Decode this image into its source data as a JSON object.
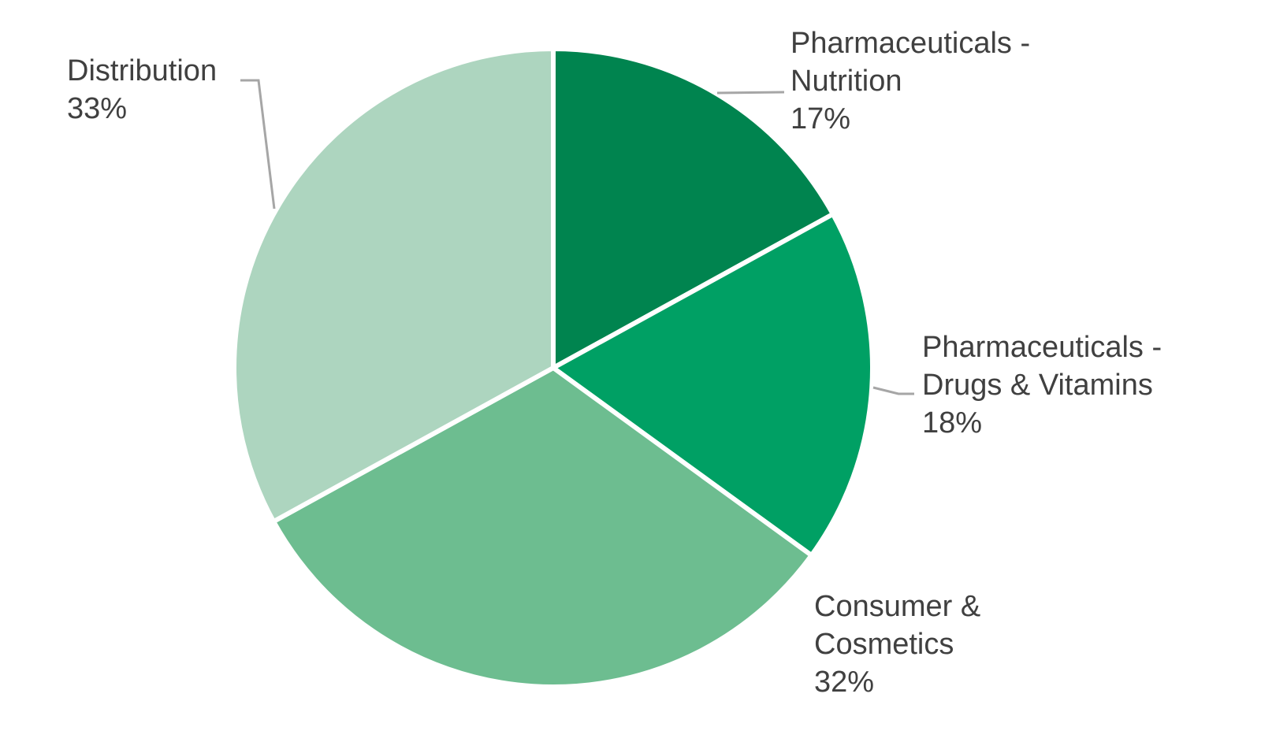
{
  "chart_data": {
    "type": "pie",
    "categories": [
      "Pharmaceuticals - Nutrition",
      "Pharmaceuticals - Drugs & Vitamins",
      "Consumer & Cosmetics",
      "Distribution"
    ],
    "values": [
      17,
      18,
      32,
      33
    ],
    "value_labels": [
      "17%",
      "18%",
      "32%",
      "33%"
    ],
    "colors": [
      "#00844f",
      "#00a064",
      "#6dbd90",
      "#add5bf"
    ]
  }
}
